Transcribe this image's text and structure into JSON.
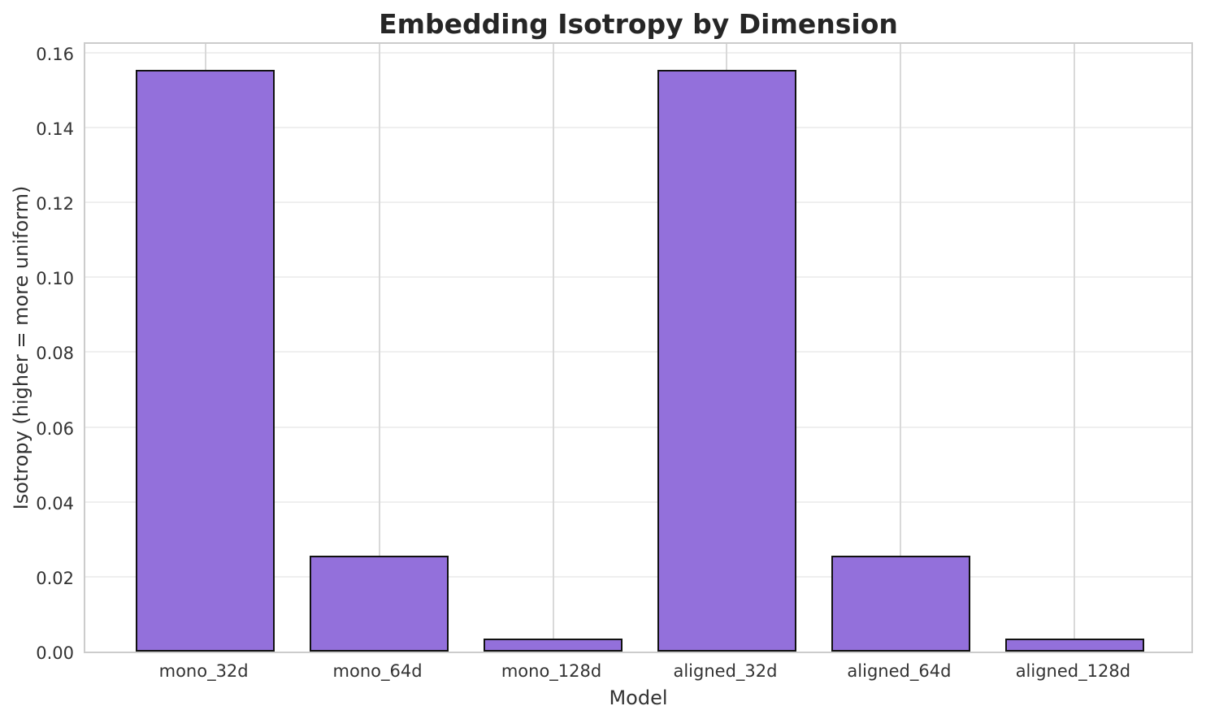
{
  "chart_data": {
    "type": "bar",
    "title": "Embedding Isotropy by Dimension",
    "xlabel": "Model",
    "ylabel": "Isotropy (higher = more uniform)",
    "categories": [
      "mono_32d",
      "mono_64d",
      "mono_128d",
      "aligned_32d",
      "aligned_64d",
      "aligned_128d"
    ],
    "values": [
      0.1554,
      0.0256,
      0.0034,
      0.1554,
      0.0256,
      0.0034
    ],
    "ylim": [
      0,
      0.1632
    ],
    "ytick_values": [
      0.0,
      0.02,
      0.04,
      0.06,
      0.08,
      0.1,
      0.12,
      0.14,
      0.16
    ],
    "ytick_labels": [
      "0.00",
      "0.02",
      "0.04",
      "0.06",
      "0.08",
      "0.10",
      "0.12",
      "0.14",
      "0.16"
    ],
    "grid": true,
    "legend": false,
    "bar_color": "#9370DB",
    "bar_edge_color": "#111111"
  },
  "colors": {
    "background": "#ffffff",
    "spine": "#cccccc",
    "grid_horizontal": "#efefef",
    "grid_vertical": "#d9d9d9",
    "title_text": "#262626",
    "tick_text": "#333333"
  }
}
